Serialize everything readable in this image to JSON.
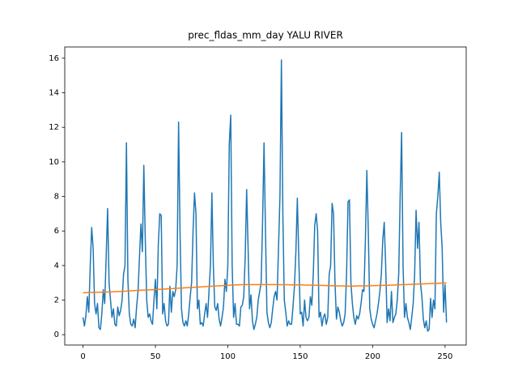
{
  "chart_data": {
    "type": "line",
    "title": "prec_fldas_mm_day YALU RIVER",
    "x": [
      0,
      1,
      2,
      3,
      4,
      5,
      6,
      7,
      8,
      9,
      10,
      11,
      12,
      13,
      14,
      15,
      16,
      17,
      18,
      19,
      20,
      21,
      22,
      23,
      24,
      25,
      26,
      27,
      28,
      29,
      30,
      31,
      32,
      33,
      34,
      35,
      36,
      37,
      38,
      39,
      40,
      41,
      42,
      43,
      44,
      45,
      46,
      47,
      48,
      49,
      50,
      51,
      52,
      53,
      54,
      55,
      56,
      57,
      58,
      59,
      60,
      61,
      62,
      63,
      64,
      65,
      66,
      67,
      68,
      69,
      70,
      71,
      72,
      73,
      74,
      75,
      76,
      77,
      78,
      79,
      80,
      81,
      82,
      83,
      84,
      85,
      86,
      87,
      88,
      89,
      90,
      91,
      92,
      93,
      94,
      95,
      96,
      97,
      98,
      99,
      100,
      101,
      102,
      103,
      104,
      105,
      106,
      107,
      108,
      109,
      110,
      111,
      112,
      113,
      114,
      115,
      116,
      117,
      118,
      119,
      120,
      121,
      122,
      123,
      124,
      125,
      126,
      127,
      128,
      129,
      130,
      131,
      132,
      133,
      134,
      135,
      136,
      137,
      138,
      139,
      140,
      141,
      142,
      143,
      144,
      145,
      146,
      147,
      148,
      149,
      150,
      151,
      152,
      153,
      154,
      155,
      156,
      157,
      158,
      159,
      160,
      161,
      162,
      163,
      164,
      165,
      166,
      167,
      168,
      169,
      170,
      171,
      172,
      173,
      174,
      175,
      176,
      177,
      178,
      179,
      180,
      181,
      182,
      183,
      184,
      185,
      186,
      187,
      188,
      189,
      190,
      191,
      192,
      193,
      194,
      195,
      196,
      197,
      198,
      199,
      200,
      201,
      202,
      203,
      204,
      205,
      206,
      207,
      208,
      209,
      210,
      211,
      212,
      213,
      214,
      215,
      216,
      217,
      218,
      219,
      220,
      221,
      222,
      223,
      224,
      225,
      226,
      227,
      228,
      229,
      230,
      231,
      232,
      233,
      234,
      235,
      236,
      237,
      238,
      239,
      240,
      241,
      242,
      243,
      244,
      245,
      246,
      247,
      248,
      249,
      250,
      251
    ],
    "series": [
      {
        "color": "#1f77b4",
        "values": [
          1.0,
          0.5,
          1.1,
          2.2,
          1.3,
          4.0,
          6.2,
          5.0,
          1.8,
          1.2,
          1.8,
          0.4,
          0.3,
          1.2,
          2.6,
          1.8,
          4.5,
          7.3,
          3.0,
          2.0,
          1.0,
          1.5,
          0.6,
          0.5,
          1.6,
          1.1,
          1.4,
          2.0,
          3.5,
          4.0,
          11.1,
          3.2,
          1.2,
          0.6,
          0.5,
          0.9,
          0.4,
          1.6,
          2.5,
          4.5,
          6.4,
          4.8,
          9.8,
          5.5,
          2.0,
          1.0,
          1.2,
          0.8,
          0.6,
          2.0,
          3.2,
          1.5,
          5.2,
          7.0,
          6.9,
          1.2,
          1.8,
          0.8,
          0.5,
          0.6,
          2.8,
          1.3,
          2.5,
          2.2,
          2.6,
          4.0,
          12.3,
          6.0,
          1.5,
          0.7,
          0.5,
          0.8,
          0.5,
          1.2,
          2.2,
          3.0,
          6.0,
          8.2,
          7.0,
          1.5,
          2.0,
          0.6,
          0.7,
          0.5,
          1.2,
          1.8,
          1.0,
          2.5,
          4.0,
          8.2,
          4.0,
          1.6,
          1.4,
          1.8,
          0.9,
          0.5,
          1.0,
          1.6,
          3.2,
          2.5,
          4.0,
          11.0,
          12.7,
          4.0,
          1.0,
          1.8,
          0.6,
          0.6,
          0.5,
          1.6,
          1.7,
          2.2,
          4.5,
          8.4,
          5.0,
          1.5,
          2.3,
          0.8,
          0.3,
          0.6,
          1.0,
          2.0,
          2.5,
          3.0,
          6.5,
          11.1,
          6.0,
          1.3,
          0.7,
          0.4,
          0.7,
          1.5,
          2.2,
          2.5,
          2.0,
          5.0,
          8.0,
          15.9,
          7.0,
          2.0,
          1.3,
          0.5,
          0.8,
          0.6,
          0.6,
          1.6,
          2.8,
          4.8,
          7.9,
          4.5,
          1.2,
          1.3,
          0.5,
          2.0,
          1.0,
          0.8,
          1.0,
          2.2,
          1.7,
          3.5,
          6.3,
          7.0,
          6.0,
          1.0,
          1.3,
          0.5,
          1.0,
          1.2,
          0.6,
          1.0,
          3.5,
          4.0,
          7.6,
          7.0,
          3.0,
          0.9,
          1.6,
          1.3,
          0.8,
          0.5,
          0.7,
          1.2,
          3.5,
          7.7,
          7.8,
          3.0,
          1.8,
          1.0,
          0.6,
          1.1,
          0.9,
          1.2,
          1.8,
          2.6,
          2.5,
          5.5,
          9.5,
          6.0,
          1.5,
          0.9,
          0.6,
          0.4,
          0.8,
          1.2,
          1.8,
          2.5,
          3.5,
          5.5,
          6.5,
          4.0,
          0.7,
          1.5,
          0.8,
          2.5,
          0.7,
          1.0,
          1.2,
          2.0,
          3.5,
          8.0,
          11.7,
          4.0,
          1.0,
          1.8,
          1.0,
          0.7,
          0.3,
          1.0,
          1.8,
          3.5,
          7.2,
          5.0,
          6.5,
          3.0,
          2.2,
          0.9,
          0.4,
          0.8,
          0.2,
          0.3,
          2.1,
          1.0,
          2.0,
          1.5,
          7.0,
          8.0,
          9.4,
          6.5,
          5.0,
          1.3,
          2.9,
          0.7
        ]
      },
      {
        "color": "#ff7f0e",
        "values": [
          2.43,
          2.43,
          2.43,
          2.43,
          2.44,
          2.44,
          2.44,
          2.44,
          2.45,
          2.45,
          2.45,
          2.45,
          2.46,
          2.46,
          2.46,
          2.46,
          2.47,
          2.47,
          2.47,
          2.48,
          2.48,
          2.48,
          2.49,
          2.49,
          2.49,
          2.5,
          2.5,
          2.51,
          2.51,
          2.52,
          2.52,
          2.53,
          2.53,
          2.54,
          2.54,
          2.55,
          2.55,
          2.56,
          2.56,
          2.57,
          2.57,
          2.58,
          2.58,
          2.58,
          2.59,
          2.59,
          2.59,
          2.6,
          2.6,
          2.6,
          2.61,
          2.61,
          2.62,
          2.62,
          2.63,
          2.63,
          2.64,
          2.64,
          2.65,
          2.65,
          2.66,
          2.66,
          2.67,
          2.67,
          2.68,
          2.68,
          2.69,
          2.69,
          2.7,
          2.7,
          2.71,
          2.71,
          2.72,
          2.72,
          2.73,
          2.73,
          2.74,
          2.74,
          2.75,
          2.75,
          2.76,
          2.76,
          2.77,
          2.77,
          2.78,
          2.78,
          2.79,
          2.79,
          2.8,
          2.8,
          2.81,
          2.81,
          2.82,
          2.82,
          2.83,
          2.83,
          2.84,
          2.84,
          2.85,
          2.85,
          2.86,
          2.86,
          2.87,
          2.87,
          2.87,
          2.88,
          2.88,
          2.88,
          2.89,
          2.89,
          2.89,
          2.89,
          2.9,
          2.9,
          2.9,
          2.9,
          2.9,
          2.9,
          2.9,
          2.9,
          2.9,
          2.9,
          2.9,
          2.9,
          2.9,
          2.9,
          2.9,
          2.9,
          2.9,
          2.9,
          2.9,
          2.9,
          2.9,
          2.9,
          2.9,
          2.89,
          2.89,
          2.89,
          2.89,
          2.89,
          2.89,
          2.89,
          2.89,
          2.88,
          2.88,
          2.88,
          2.88,
          2.88,
          2.88,
          2.88,
          2.88,
          2.88,
          2.88,
          2.87,
          2.87,
          2.87,
          2.87,
          2.87,
          2.86,
          2.86,
          2.86,
          2.86,
          2.86,
          2.85,
          2.85,
          2.85,
          2.85,
          2.84,
          2.84,
          2.84,
          2.84,
          2.83,
          2.83,
          2.83,
          2.83,
          2.82,
          2.82,
          2.82,
          2.82,
          2.82,
          2.82,
          2.81,
          2.81,
          2.81,
          2.81,
          2.81,
          2.81,
          2.81,
          2.81,
          2.82,
          2.82,
          2.82,
          2.82,
          2.82,
          2.82,
          2.83,
          2.83,
          2.83,
          2.83,
          2.83,
          2.84,
          2.84,
          2.84,
          2.84,
          2.85,
          2.85,
          2.85,
          2.85,
          2.86,
          2.86,
          2.86,
          2.86,
          2.87,
          2.87,
          2.87,
          2.87,
          2.88,
          2.88,
          2.88,
          2.89,
          2.89,
          2.89,
          2.9,
          2.9,
          2.9,
          2.91,
          2.91,
          2.91,
          2.92,
          2.92,
          2.92,
          2.93,
          2.93,
          2.93,
          2.94,
          2.94,
          2.94,
          2.95,
          2.95,
          2.95,
          2.96,
          2.96,
          2.96,
          2.97,
          2.97,
          2.97,
          2.98,
          2.98,
          2.98,
          2.99,
          2.99,
          3.0
        ]
      }
    ],
    "xlim": [
      -12.6,
      264.6
    ],
    "xticks": [
      0,
      50,
      100,
      150,
      200,
      250
    ],
    "ylim": [
      -0.6,
      16.65
    ],
    "yticks": [
      0,
      2,
      4,
      6,
      8,
      10,
      12,
      14,
      16
    ]
  }
}
